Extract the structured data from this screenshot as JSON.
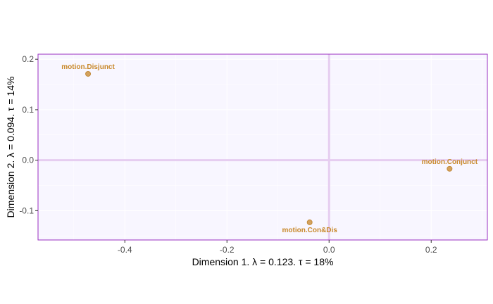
{
  "chart_data": {
    "type": "scatter",
    "title": "",
    "xlabel": "Dimension 1.   λ = 0.123.  τ = 18%",
    "ylabel": "Dimension 2.   λ = 0.094.  τ = 14%",
    "xlim": [
      -0.57,
      0.31
    ],
    "ylim": [
      -0.158,
      0.21
    ],
    "xticks": [
      -0.4,
      -0.2,
      0.0,
      0.2
    ],
    "xtick_labels": [
      "-0.4",
      "-0.2",
      "0.0",
      "0.2"
    ],
    "yticks": [
      -0.1,
      0.0,
      0.1,
      0.2
    ],
    "ytick_labels": [
      "-0.1",
      "0.0",
      "0.1",
      "0.2"
    ],
    "grid": true,
    "reference_lines": {
      "x": 0,
      "y": 0
    },
    "points": [
      {
        "label": "motion.Disjunct",
        "x": -0.472,
        "y": 0.171,
        "label_pos": "above"
      },
      {
        "label": "motion.Conjunct",
        "x": 0.236,
        "y": -0.017,
        "label_pos": "above"
      },
      {
        "label": "motion.Con&Dis",
        "x": -0.038,
        "y": -0.123,
        "label_pos": "below"
      }
    ],
    "colors": {
      "point": "#d4a25e",
      "point_stroke": "#c28a3a",
      "label": "#c8882a",
      "panel_background": "#f8f6ff",
      "panel_border": "#9a2fc2",
      "reference_line": "#e6cdf0",
      "grid": "#ffffff"
    }
  }
}
